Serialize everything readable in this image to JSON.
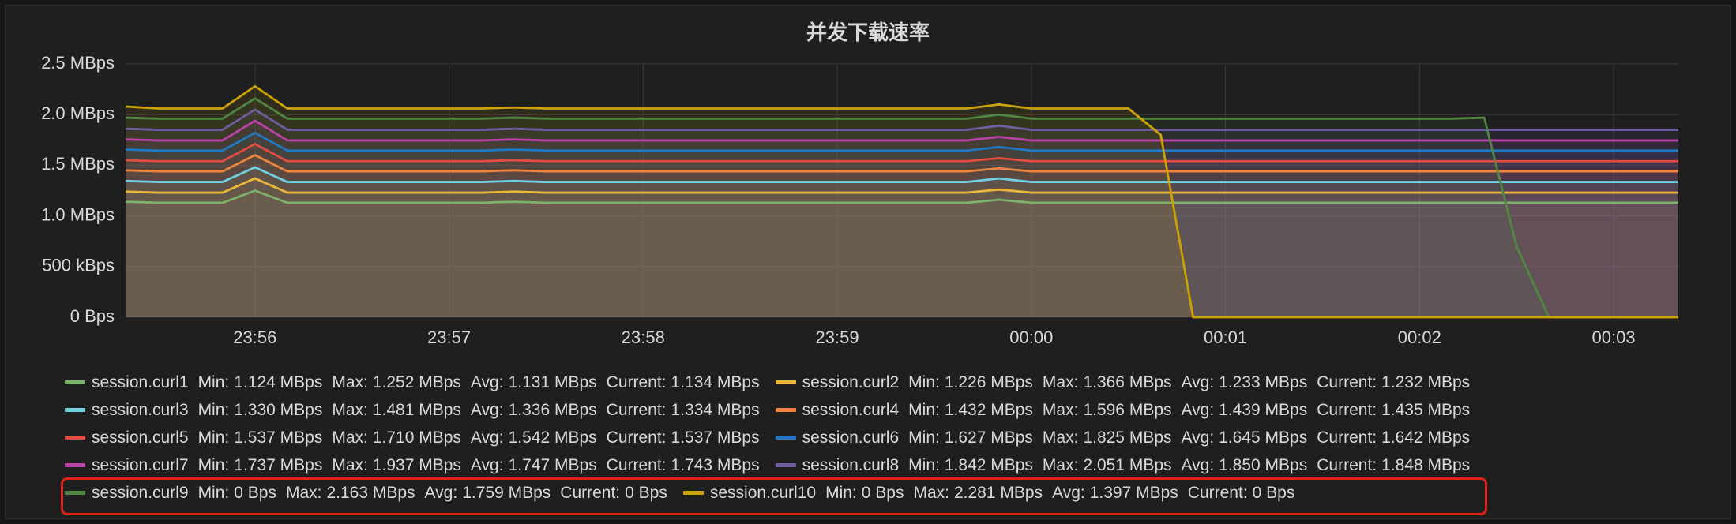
{
  "chart_data": {
    "type": "line",
    "title": "并发下载速率",
    "ylim": [
      0,
      2.5
    ],
    "yticks": [
      {
        "value": 0,
        "label": "0 Bps"
      },
      {
        "value": 0.5,
        "label": "500 kBps"
      },
      {
        "value": 1,
        "label": "1.0 MBps"
      },
      {
        "value": 1.5,
        "label": "1.5 MBps"
      },
      {
        "value": 2,
        "label": "2.0 MBps"
      },
      {
        "value": 2.5,
        "label": "2.5 MBps"
      }
    ],
    "grid": true,
    "fill": true,
    "categories": [
      null,
      null,
      null,
      null,
      "23:56",
      null,
      null,
      null,
      null,
      null,
      "23:57",
      null,
      null,
      null,
      null,
      null,
      "23:58",
      null,
      null,
      null,
      null,
      null,
      "23:59",
      null,
      null,
      null,
      null,
      null,
      "00:00",
      null,
      null,
      null,
      null,
      null,
      "00:01",
      null,
      null,
      null,
      null,
      null,
      "00:02",
      null,
      null,
      null,
      null,
      null,
      "00:03",
      null,
      null
    ],
    "legend_columns": [
      "Min:",
      "Max:",
      "Avg:",
      "Current:"
    ],
    "series": [
      {
        "name": "session.curl1",
        "color": "#7eb26d",
        "legend_values": [
          "1.124 MBps",
          "1.252 MBps",
          "1.131 MBps",
          "1.134 MBps"
        ],
        "values": [
          1.14,
          1.13,
          1.13,
          1.13,
          1.25,
          1.13,
          1.13,
          1.13,
          1.13,
          1.13,
          1.13,
          1.13,
          1.14,
          1.13,
          1.13,
          1.13,
          1.13,
          1.13,
          1.13,
          1.13,
          1.13,
          1.13,
          1.13,
          1.13,
          1.13,
          1.13,
          1.13,
          1.16,
          1.13,
          1.13,
          1.13,
          1.13,
          1.13,
          1.13,
          1.13,
          1.13,
          1.13,
          1.13,
          1.13,
          1.13,
          1.13,
          1.13,
          1.13,
          1.13,
          1.13,
          1.13,
          1.13,
          1.13,
          1.13
        ]
      },
      {
        "name": "session.curl2",
        "color": "#eab839",
        "legend_values": [
          "1.226 MBps",
          "1.366 MBps",
          "1.233 MBps",
          "1.232 MBps"
        ],
        "values": [
          1.24,
          1.23,
          1.23,
          1.23,
          1.37,
          1.23,
          1.23,
          1.23,
          1.23,
          1.23,
          1.23,
          1.23,
          1.24,
          1.23,
          1.23,
          1.23,
          1.23,
          1.23,
          1.23,
          1.23,
          1.23,
          1.23,
          1.23,
          1.23,
          1.23,
          1.23,
          1.23,
          1.26,
          1.23,
          1.23,
          1.23,
          1.23,
          1.23,
          1.23,
          1.23,
          1.23,
          1.23,
          1.23,
          1.23,
          1.23,
          1.23,
          1.23,
          1.23,
          1.23,
          1.23,
          1.23,
          1.23,
          1.23,
          1.23
        ]
      },
      {
        "name": "session.curl3",
        "color": "#6ed0e0",
        "legend_values": [
          "1.330 MBps",
          "1.481 MBps",
          "1.336 MBps",
          "1.334 MBps"
        ],
        "values": [
          1.345,
          1.335,
          1.335,
          1.335,
          1.48,
          1.335,
          1.335,
          1.335,
          1.335,
          1.335,
          1.335,
          1.335,
          1.345,
          1.335,
          1.335,
          1.335,
          1.335,
          1.335,
          1.335,
          1.335,
          1.335,
          1.335,
          1.335,
          1.335,
          1.335,
          1.335,
          1.335,
          1.37,
          1.335,
          1.335,
          1.335,
          1.335,
          1.335,
          1.335,
          1.335,
          1.335,
          1.335,
          1.335,
          1.335,
          1.335,
          1.335,
          1.335,
          1.335,
          1.335,
          1.335,
          1.335,
          1.335,
          1.335,
          1.335
        ]
      },
      {
        "name": "session.curl4",
        "color": "#ef843c",
        "legend_values": [
          "1.432 MBps",
          "1.596 MBps",
          "1.439 MBps",
          "1.435 MBps"
        ],
        "values": [
          1.45,
          1.44,
          1.44,
          1.44,
          1.6,
          1.44,
          1.44,
          1.44,
          1.44,
          1.44,
          1.44,
          1.44,
          1.45,
          1.44,
          1.44,
          1.44,
          1.44,
          1.44,
          1.44,
          1.44,
          1.44,
          1.44,
          1.44,
          1.44,
          1.44,
          1.44,
          1.44,
          1.47,
          1.44,
          1.44,
          1.44,
          1.44,
          1.44,
          1.44,
          1.44,
          1.44,
          1.44,
          1.44,
          1.44,
          1.44,
          1.44,
          1.44,
          1.44,
          1.44,
          1.44,
          1.44,
          1.44,
          1.44,
          1.44
        ]
      },
      {
        "name": "session.curl5",
        "color": "#e24d42",
        "legend_values": [
          "1.537 MBps",
          "1.710 MBps",
          "1.542 MBps",
          "1.537 MBps"
        ],
        "values": [
          1.55,
          1.54,
          1.54,
          1.54,
          1.71,
          1.54,
          1.54,
          1.54,
          1.54,
          1.54,
          1.54,
          1.54,
          1.55,
          1.54,
          1.54,
          1.54,
          1.54,
          1.54,
          1.54,
          1.54,
          1.54,
          1.54,
          1.54,
          1.54,
          1.54,
          1.54,
          1.54,
          1.57,
          1.54,
          1.54,
          1.54,
          1.54,
          1.54,
          1.54,
          1.54,
          1.54,
          1.54,
          1.54,
          1.54,
          1.54,
          1.54,
          1.54,
          1.54,
          1.54,
          1.54,
          1.54,
          1.54,
          1.54,
          1.54
        ]
      },
      {
        "name": "session.curl6",
        "color": "#1f78c1",
        "legend_values": [
          "1.627 MBps",
          "1.825 MBps",
          "1.645 MBps",
          "1.642 MBps"
        ],
        "values": [
          1.655,
          1.645,
          1.645,
          1.645,
          1.82,
          1.645,
          1.645,
          1.645,
          1.645,
          1.645,
          1.645,
          1.645,
          1.655,
          1.645,
          1.645,
          1.645,
          1.645,
          1.645,
          1.645,
          1.645,
          1.645,
          1.645,
          1.645,
          1.645,
          1.645,
          1.645,
          1.645,
          1.68,
          1.645,
          1.645,
          1.645,
          1.645,
          1.645,
          1.645,
          1.645,
          1.645,
          1.645,
          1.645,
          1.645,
          1.645,
          1.645,
          1.645,
          1.645,
          1.645,
          1.645,
          1.645,
          1.645,
          1.645,
          1.645
        ]
      },
      {
        "name": "session.curl7",
        "color": "#ba43a9",
        "legend_values": [
          "1.737 MBps",
          "1.937 MBps",
          "1.747 MBps",
          "1.743 MBps"
        ],
        "values": [
          1.755,
          1.745,
          1.745,
          1.745,
          1.94,
          1.745,
          1.745,
          1.745,
          1.745,
          1.745,
          1.745,
          1.745,
          1.755,
          1.745,
          1.745,
          1.745,
          1.745,
          1.745,
          1.745,
          1.745,
          1.745,
          1.745,
          1.745,
          1.745,
          1.745,
          1.745,
          1.745,
          1.78,
          1.745,
          1.745,
          1.745,
          1.745,
          1.745,
          1.745,
          1.745,
          1.745,
          1.745,
          1.745,
          1.745,
          1.745,
          1.745,
          1.745,
          1.745,
          1.745,
          1.745,
          1.745,
          1.745,
          1.745,
          1.745
        ]
      },
      {
        "name": "session.curl8",
        "color": "#705da0",
        "legend_values": [
          "1.842 MBps",
          "2.051 MBps",
          "1.850 MBps",
          "1.848 MBps"
        ],
        "values": [
          1.86,
          1.85,
          1.85,
          1.85,
          2.05,
          1.85,
          1.85,
          1.85,
          1.85,
          1.85,
          1.85,
          1.85,
          1.86,
          1.85,
          1.85,
          1.85,
          1.85,
          1.85,
          1.85,
          1.85,
          1.85,
          1.85,
          1.85,
          1.85,
          1.85,
          1.85,
          1.85,
          1.89,
          1.85,
          1.85,
          1.85,
          1.85,
          1.85,
          1.85,
          1.85,
          1.85,
          1.85,
          1.85,
          1.85,
          1.85,
          1.85,
          1.85,
          1.85,
          1.85,
          1.85,
          1.85,
          1.85,
          1.85,
          1.85
        ]
      },
      {
        "name": "session.curl9",
        "color": "#508642",
        "legend_values": [
          "0 Bps",
          "2.163 MBps",
          "1.759 MBps",
          "0 Bps"
        ],
        "values": [
          1.97,
          1.96,
          1.96,
          1.96,
          2.16,
          1.96,
          1.96,
          1.96,
          1.96,
          1.96,
          1.96,
          1.96,
          1.97,
          1.96,
          1.96,
          1.96,
          1.96,
          1.96,
          1.96,
          1.96,
          1.96,
          1.96,
          1.96,
          1.96,
          1.96,
          1.96,
          1.96,
          2.0,
          1.96,
          1.96,
          1.96,
          1.96,
          1.96,
          1.96,
          1.96,
          1.96,
          1.96,
          1.96,
          1.96,
          1.96,
          1.96,
          1.96,
          1.97,
          0.7,
          0,
          0,
          0,
          0,
          0
        ]
      },
      {
        "name": "session.curl10",
        "color": "#cca300",
        "legend_values": [
          "0 Bps",
          "2.281 MBps",
          "1.397 MBps",
          "0 Bps"
        ],
        "values": [
          2.08,
          2.06,
          2.06,
          2.06,
          2.28,
          2.06,
          2.06,
          2.06,
          2.06,
          2.06,
          2.06,
          2.06,
          2.07,
          2.06,
          2.06,
          2.06,
          2.06,
          2.06,
          2.06,
          2.06,
          2.06,
          2.06,
          2.06,
          2.06,
          2.06,
          2.06,
          2.06,
          2.1,
          2.06,
          2.06,
          2.06,
          2.06,
          1.8,
          0,
          0,
          0,
          0,
          0,
          0,
          0,
          0,
          0,
          0,
          0,
          0,
          0,
          0,
          0,
          0
        ]
      }
    ]
  }
}
